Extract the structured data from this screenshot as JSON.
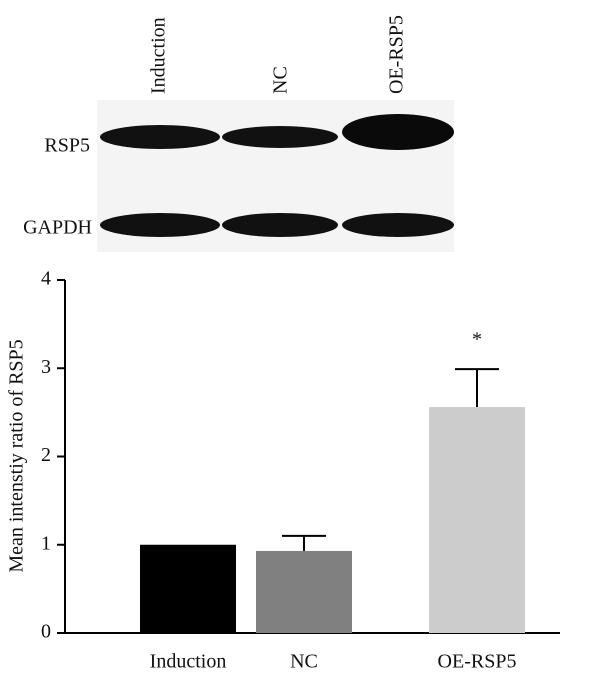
{
  "blot": {
    "lanes": [
      "Induction",
      "NC",
      "OE-RSP5"
    ],
    "rows": [
      "RSP5",
      "GAPDH"
    ]
  },
  "chart_data": {
    "type": "bar",
    "y_label": "Mean intenstiy ratio of RSP5",
    "categories": [
      "Induction",
      "NC",
      "OE-RSP5"
    ],
    "values": [
      1.0,
      0.93,
      2.56
    ],
    "errors": [
      null,
      0.17,
      0.43
    ],
    "colors": [
      "#000000",
      "#808080",
      "#cccccc"
    ],
    "annotations": [
      null,
      null,
      "*"
    ],
    "ylim": [
      0,
      4
    ],
    "yticks": [
      0,
      1,
      2,
      3,
      4
    ],
    "grid": false
  }
}
